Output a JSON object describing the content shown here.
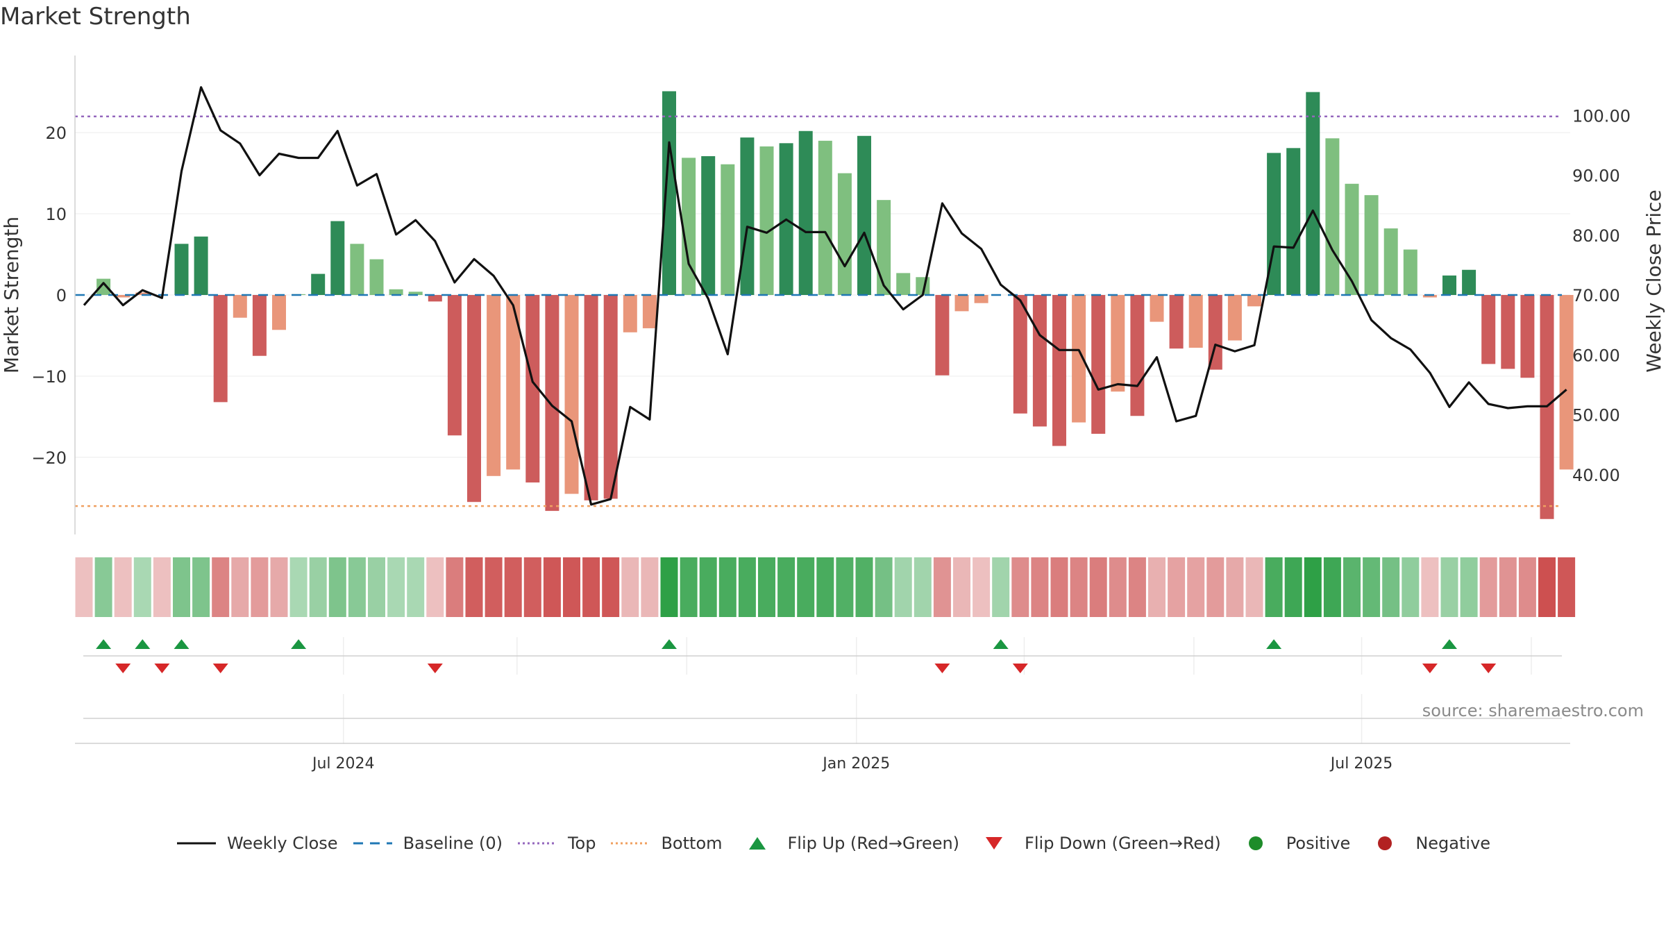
{
  "title": "Market Strength",
  "source": "source: sharemaestro.com",
  "colors": {
    "strong_green": "#2e8b57",
    "light_green": "#7fbf7f",
    "strong_red": "#cd5c5c",
    "light_red": "#e9967a",
    "close_line": "#111111",
    "baseline": "#1f77b4",
    "top": "#9467bd",
    "bottom": "#ff7f0e",
    "flip_up": "#1a9641",
    "flip_down": "#d62728",
    "positive": "#1e8c2a",
    "negative": "#b22222"
  },
  "legend": [
    {
      "label": "Weekly Close",
      "icon": "solid-line"
    },
    {
      "label": "Baseline (0)",
      "icon": "dashed-line"
    },
    {
      "label": "Top",
      "icon": "dotted-line-purple"
    },
    {
      "label": "Bottom",
      "icon": "dotted-line-orange"
    },
    {
      "label": "Flip Up (Red→Green)",
      "icon": "triangle-up"
    },
    {
      "label": "Flip Down (Green→Red)",
      "icon": "triangle-down"
    },
    {
      "label": "Positive",
      "icon": "circle-green"
    },
    {
      "label": "Negative",
      "icon": "circle-red"
    }
  ],
  "chart_data": {
    "type": "bar",
    "title": "Market Strength",
    "ylabel": "Market Strength",
    "y2label": "Weekly Close Price",
    "ylim": [
      -29.5,
      29.5
    ],
    "y2lim": [
      30,
      110
    ],
    "yticks": [
      20,
      10,
      0,
      -10,
      -20
    ],
    "ytick_labels": [
      "20",
      "10",
      "0",
      "−10",
      "−20"
    ],
    "y2ticks": [
      100,
      90,
      80,
      70,
      60,
      50,
      40
    ],
    "y2tick_labels": [
      "100.00",
      "90.00",
      "80.00",
      "70.00",
      "60.00",
      "50.00",
      "40.00"
    ],
    "xtick_labels": [
      "Jul 2024",
      "Jan 2025",
      "Jul 2025"
    ],
    "top_threshold": 22,
    "bottom_threshold": -26,
    "baseline": 0,
    "strength": [
      0,
      2,
      -0.3,
      0.3,
      0,
      6.3,
      7.2,
      -13.2,
      -2.8,
      -7.5,
      -4.3,
      0.1,
      2.6,
      9.1,
      6.3,
      4.4,
      0.7,
      0.4,
      -0.8,
      -17.3,
      -25.5,
      -22.3,
      -21.5,
      -23.1,
      -26.6,
      -24.5,
      -25.3,
      -25.1,
      -4.6,
      -4.1,
      25.1,
      16.9,
      17.1,
      16.1,
      19.4,
      18.3,
      18.7,
      20.2,
      19.0,
      15.0,
      19.6,
      11.7,
      2.7,
      2.2,
      -9.9,
      -2.0,
      -1.0,
      0,
      -14.6,
      -16.2,
      -18.6,
      -15.7,
      -17.1,
      -11.9,
      -14.9,
      -3.3,
      -6.6,
      -6.5,
      -9.2,
      -5.6,
      -1.4,
      17.5,
      18.1,
      25.0,
      19.3,
      13.7,
      12.3,
      8.2,
      5.6,
      -0.3,
      2.4,
      3.1,
      -8.5,
      -9.1,
      -10.2,
      -27.6,
      -21.5
    ],
    "categories_shade": [
      "sg",
      "lg",
      "lr",
      "lr",
      "lr",
      "sg",
      "sg",
      "sr",
      "lr",
      "sr",
      "lr",
      "lg",
      "sg",
      "sg",
      "lg",
      "lg",
      "lg",
      "lg",
      "sr",
      "sr",
      "sr",
      "lr",
      "lr",
      "sr",
      "sr",
      "lr",
      "sr",
      "sr",
      "lr",
      "lr",
      "sg",
      "lg",
      "sg",
      "lg",
      "sg",
      "lg",
      "sg",
      "sg",
      "lg",
      "lg",
      "sg",
      "lg",
      "lg",
      "lg",
      "sr",
      "lr",
      "lr",
      "sg",
      "sr",
      "sr",
      "sr",
      "lr",
      "sr",
      "lr",
      "sr",
      "lr",
      "sr",
      "lr",
      "sr",
      "lr",
      "lr",
      "sg",
      "sg",
      "sg",
      "lg",
      "lg",
      "lg",
      "lg",
      "lg",
      "lr",
      "sg",
      "sg",
      "sr",
      "sr",
      "sr",
      "sr",
      "lr"
    ],
    "weekly_close": [
      68.3,
      72.0,
      68.3,
      70.8,
      69.5,
      90.7,
      104.7,
      97.5,
      95.3,
      90.0,
      93.6,
      92.9,
      92.9,
      97.4,
      88.3,
      90.2,
      80.1,
      82.5,
      79.0,
      72.1,
      76.0,
      73.2,
      68.3,
      55.5,
      51.5,
      48.9,
      35.0,
      35.9,
      51.3,
      49.2,
      95.5,
      75.2,
      69.4,
      60.1,
      81.4,
      80.4,
      82.6,
      80.5,
      80.5,
      74.8,
      80.4,
      71.6,
      67.6,
      70.0,
      85.3,
      80.3,
      77.7,
      71.7,
      69.1,
      63.3,
      60.8,
      60.8,
      54.2,
      55.1,
      54.8,
      59.6,
      48.9,
      49.8,
      61.7,
      60.6,
      61.6,
      78.1,
      77.9,
      84.1,
      77.5,
      72.3,
      65.8,
      62.8,
      60.9,
      57.0,
      51.3,
      55.4,
      51.8,
      51.1,
      51.4,
      51.4,
      54.2
    ],
    "heat_strip": [
      {
        "shade": "lr",
        "level": 0.25
      },
      {
        "shade": "lg",
        "level": 0.5
      },
      {
        "shade": "lr",
        "level": 0.25
      },
      {
        "shade": "lg",
        "level": 0.3
      },
      {
        "shade": "lr",
        "level": 0.25
      },
      {
        "shade": "lg",
        "level": 0.55
      },
      {
        "shade": "lg",
        "level": 0.55
      },
      {
        "shade": "lr",
        "level": 0.65
      },
      {
        "shade": "lr",
        "level": 0.4
      },
      {
        "shade": "lr",
        "level": 0.5
      },
      {
        "shade": "lr",
        "level": 0.4
      },
      {
        "shade": "lg",
        "level": 0.3
      },
      {
        "shade": "lg",
        "level": 0.4
      },
      {
        "shade": "lg",
        "level": 0.55
      },
      {
        "shade": "lg",
        "level": 0.5
      },
      {
        "shade": "lg",
        "level": 0.4
      },
      {
        "shade": "lg",
        "level": 0.3
      },
      {
        "shade": "lg",
        "level": 0.3
      },
      {
        "shade": "lr",
        "level": 0.25
      },
      {
        "shade": "lr",
        "level": 0.7
      },
      {
        "shade": "lr",
        "level": 0.9
      },
      {
        "shade": "lr",
        "level": 0.9
      },
      {
        "shade": "lr",
        "level": 0.9
      },
      {
        "shade": "lr",
        "level": 0.9
      },
      {
        "shade": "lr",
        "level": 0.95
      },
      {
        "shade": "lr",
        "level": 0.95
      },
      {
        "shade": "lr",
        "level": 0.95
      },
      {
        "shade": "lr",
        "level": 0.95
      },
      {
        "shade": "lr",
        "level": 0.3
      },
      {
        "shade": "lr",
        "level": 0.3
      },
      {
        "shade": "lg",
        "level": 1.0
      },
      {
        "shade": "lg",
        "level": 0.85
      },
      {
        "shade": "lg",
        "level": 0.85
      },
      {
        "shade": "lg",
        "level": 0.85
      },
      {
        "shade": "lg",
        "level": 0.85
      },
      {
        "shade": "lg",
        "level": 0.85
      },
      {
        "shade": "lg",
        "level": 0.85
      },
      {
        "shade": "lg",
        "level": 0.85
      },
      {
        "shade": "lg",
        "level": 0.85
      },
      {
        "shade": "lg",
        "level": 0.8
      },
      {
        "shade": "lg",
        "level": 0.8
      },
      {
        "shade": "lg",
        "level": 0.6
      },
      {
        "shade": "lg",
        "level": 0.35
      },
      {
        "shade": "lg",
        "level": 0.35
      },
      {
        "shade": "lr",
        "level": 0.55
      },
      {
        "shade": "lr",
        "level": 0.3
      },
      {
        "shade": "lr",
        "level": 0.25
      },
      {
        "shade": "lg",
        "level": 0.35
      },
      {
        "shade": "lr",
        "level": 0.6
      },
      {
        "shade": "lr",
        "level": 0.65
      },
      {
        "shade": "lr",
        "level": 0.7
      },
      {
        "shade": "lr",
        "level": 0.65
      },
      {
        "shade": "lr",
        "level": 0.7
      },
      {
        "shade": "lr",
        "level": 0.6
      },
      {
        "shade": "lr",
        "level": 0.65
      },
      {
        "shade": "lr",
        "level": 0.35
      },
      {
        "shade": "lr",
        "level": 0.45
      },
      {
        "shade": "lr",
        "level": 0.45
      },
      {
        "shade": "lr",
        "level": 0.5
      },
      {
        "shade": "lr",
        "level": 0.4
      },
      {
        "shade": "lr",
        "level": 0.3
      },
      {
        "shade": "lg",
        "level": 0.85
      },
      {
        "shade": "lg",
        "level": 0.9
      },
      {
        "shade": "lg",
        "level": 1.0
      },
      {
        "shade": "lg",
        "level": 0.9
      },
      {
        "shade": "lg",
        "level": 0.75
      },
      {
        "shade": "lg",
        "level": 0.7
      },
      {
        "shade": "lg",
        "level": 0.6
      },
      {
        "shade": "lg",
        "level": 0.45
      },
      {
        "shade": "lr",
        "level": 0.25
      },
      {
        "shade": "lg",
        "level": 0.4
      },
      {
        "shade": "lg",
        "level": 0.45
      },
      {
        "shade": "lr",
        "level": 0.5
      },
      {
        "shade": "lr",
        "level": 0.55
      },
      {
        "shade": "lr",
        "level": 0.6
      },
      {
        "shade": "lr",
        "level": 1.0
      },
      {
        "shade": "lr",
        "level": 0.95
      }
    ],
    "flip_up_weeks": [
      1,
      3,
      5,
      11,
      30,
      47,
      61,
      70
    ],
    "flip_down_weeks": [
      2,
      4,
      7,
      18,
      44,
      48,
      69,
      72
    ],
    "xtick_weeks": [
      13.3,
      39.6,
      65.5
    ],
    "signal_grid_weeks": [
      13.3,
      22.2,
      30.9,
      39.6,
      48.2,
      56.9,
      65.5,
      74.2
    ],
    "num_weeks": 77
  }
}
